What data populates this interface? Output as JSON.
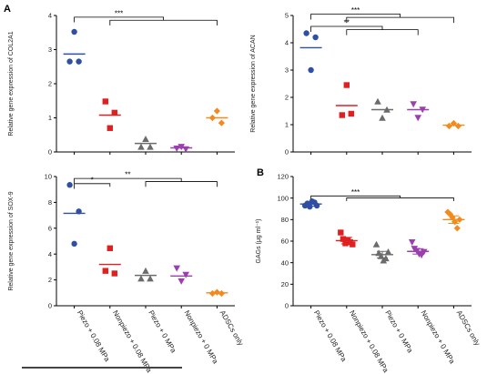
{
  "colors": {
    "piezo_008": "#2e4fa3",
    "nonpiezo_008": "#e02020",
    "piezo_0": "#6b6b6b",
    "nonpiezo_0": "#9b3fae",
    "adscs": "#f28a1d"
  },
  "chart_data": [
    {
      "id": "col2a1",
      "panel_letter": "A",
      "type": "scatter",
      "ylabel": "Relative gene expression of COL2A1",
      "ylim": [
        0,
        4
      ],
      "yticks": [
        0,
        1,
        2,
        3,
        4
      ],
      "show_categories": false,
      "series": [
        {
          "group": "Piezo + 0.08 MPa",
          "marker": "circle",
          "color_key": "piezo_008",
          "points": [
            3.52,
            2.65,
            2.65
          ],
          "line": 2.87,
          "errbar": null
        },
        {
          "group": "Nonpiezo + 0.08 MPa",
          "marker": "square",
          "color_key": "nonpiezo_008",
          "points": [
            1.48,
            1.15,
            0.7
          ],
          "line": 1.08,
          "errbar": null
        },
        {
          "group": "Piezo + 0 MPa",
          "marker": "triangle",
          "color_key": "piezo_0",
          "points": [
            0.38,
            0.15,
            0.15
          ],
          "line": 0.25,
          "errbar": null
        },
        {
          "group": "Nonpiezo + 0 MPa",
          "marker": "triangle-down",
          "color_key": "nonpiezo_0",
          "points": [
            0.15,
            0.1,
            0.08
          ],
          "line": 0.12,
          "errbar": null
        },
        {
          "group": "ADSCs only",
          "marker": "diamond",
          "color_key": "adscs",
          "points": [
            1.2,
            1.0,
            0.85
          ],
          "line": 1.0,
          "errbar": null
        }
      ],
      "significance": [
        {
          "label": "***",
          "y": 3.95,
          "left_from": 0,
          "left_to": 0,
          "right_from": 1,
          "right_to": 4,
          "drop": 0.15
        }
      ]
    },
    {
      "id": "acan",
      "panel_letter": "",
      "type": "scatter",
      "ylabel": "Relative gene expression of ACAN",
      "ylim": [
        0,
        5
      ],
      "yticks": [
        0,
        1,
        2,
        3,
        4,
        5
      ],
      "show_categories": false,
      "series": [
        {
          "group": "Piezo + 0.08 MPa",
          "marker": "circle",
          "color_key": "piezo_008",
          "points": [
            4.35,
            4.2,
            3.0
          ],
          "line": 3.82,
          "errbar": null
        },
        {
          "group": "Nonpiezo + 0.08 MPa",
          "marker": "square",
          "color_key": "nonpiezo_008",
          "points": [
            2.45,
            1.35,
            1.4
          ],
          "line": 1.7,
          "errbar": null
        },
        {
          "group": "Piezo + 0 MPa",
          "marker": "triangle",
          "color_key": "piezo_0",
          "points": [
            1.85,
            1.55,
            1.25
          ],
          "line": 1.55,
          "errbar": null
        },
        {
          "group": "Nonpiezo + 0 MPa",
          "marker": "triangle-down",
          "color_key": "nonpiezo_0",
          "points": [
            1.75,
            1.55,
            1.25
          ],
          "line": 1.55,
          "errbar": null
        },
        {
          "group": "ADSCs only",
          "marker": "diamond",
          "color_key": "adscs",
          "points": [
            1.05,
            0.95,
            0.95
          ],
          "line": 0.98,
          "errbar": null
        }
      ],
      "significance": [
        {
          "label": "***",
          "y": 5.05,
          "left_from": 0,
          "left_to": 0,
          "right_from": 1,
          "right_to": 4,
          "drop": 0.2
        },
        {
          "label": "**",
          "y": 4.6,
          "left_from": 0,
          "left_to": 0,
          "right_from": 1,
          "right_to": 3,
          "drop": 0.2
        }
      ]
    },
    {
      "id": "sox9",
      "panel_letter": "",
      "type": "scatter",
      "ylabel": "Relative gene expression of SOX-9",
      "ylim": [
        0,
        10
      ],
      "yticks": [
        0,
        2,
        4,
        6,
        8,
        10
      ],
      "show_categories": true,
      "series": [
        {
          "group": "Piezo + 0.08 MPa",
          "marker": "circle",
          "color_key": "piezo_008",
          "points": [
            9.35,
            7.3,
            4.8
          ],
          "line": 7.15,
          "errbar": null
        },
        {
          "group": "Nonpiezo + 0.08 MPa",
          "marker": "square",
          "color_key": "nonpiezo_008",
          "points": [
            4.45,
            2.7,
            2.5
          ],
          "line": 3.2,
          "errbar": null
        },
        {
          "group": "Piezo + 0 MPa",
          "marker": "triangle",
          "color_key": "piezo_0",
          "points": [
            2.7,
            2.1,
            2.1
          ],
          "line": 2.35,
          "errbar": null
        },
        {
          "group": "Nonpiezo + 0 MPa",
          "marker": "triangle-down",
          "color_key": "nonpiezo_0",
          "points": [
            2.9,
            2.4,
            1.9
          ],
          "line": 2.3,
          "errbar": null
        },
        {
          "group": "ADSCs only",
          "marker": "diamond",
          "color_key": "adscs",
          "points": [
            1.05,
            0.95,
            0.95
          ],
          "line": 1.0,
          "errbar": null
        }
      ],
      "significance": [
        {
          "label": "**",
          "y": 9.85,
          "left_from": 0,
          "left_to": 0,
          "right_from": 2,
          "right_to": 4,
          "drop": 0.4
        },
        {
          "label": "*",
          "y": 9.45,
          "left_from": 0,
          "left_to": 0,
          "right_from": 1,
          "right_to": 1,
          "drop": 0.4
        }
      ]
    },
    {
      "id": "gags",
      "panel_letter": "B",
      "type": "scatter",
      "ylabel": "GAGs (μg ml⁻¹)",
      "ylim": [
        0,
        120
      ],
      "yticks": [
        0,
        20,
        40,
        60,
        80,
        100,
        120
      ],
      "show_categories": true,
      "series": [
        {
          "group": "Piezo + 0.08 MPa",
          "marker": "circle",
          "color_key": "piezo_008",
          "points": [
            93,
            95,
            92,
            97,
            96,
            93
          ],
          "line": 94.5,
          "errbar": [
            92.5,
            96.5
          ]
        },
        {
          "group": "Nonpiezo + 0.08 MPa",
          "marker": "square",
          "color_key": "nonpiezo_008",
          "points": [
            68,
            62,
            58,
            61,
            59,
            57
          ],
          "line": 60.5,
          "errbar": [
            57.5,
            63.5
          ]
        },
        {
          "group": "Piezo + 0 MPa",
          "marker": "triangle",
          "color_key": "piezo_0",
          "points": [
            57,
            49,
            46,
            42,
            44,
            50
          ],
          "line": 47.5,
          "errbar": [
            44.5,
            50.5
          ]
        },
        {
          "group": "Nonpiezo + 0 MPa",
          "marker": "triangle-down",
          "color_key": "nonpiezo_0",
          "points": [
            59,
            53,
            51,
            48,
            47,
            50
          ],
          "line": 50.5,
          "errbar": [
            48,
            53
          ]
        },
        {
          "group": "ADSCs only",
          "marker": "diamond",
          "color_key": "adscs",
          "points": [
            87,
            85,
            82,
            78,
            72,
            80
          ],
          "line": 80,
          "errbar": [
            76.5,
            83.5
          ]
        }
      ],
      "significance": [
        {
          "label": "***",
          "y": 102,
          "left_from": 0,
          "left_to": 0,
          "right_from": 1,
          "right_to": 4,
          "drop": 3
        }
      ]
    }
  ],
  "categories": [
    "Piezo + 0.08 MPa",
    "Nonpiezo + 0.08 MPa",
    "Piezo + 0 MPa",
    "Nonpiezo + 0 MPa",
    "ADSCs only"
  ]
}
